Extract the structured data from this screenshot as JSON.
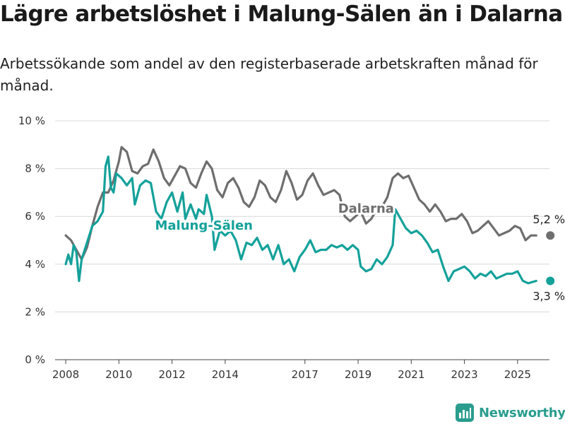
{
  "header": {
    "title": "Lägre arbetslöshet i Malung-Sälen än i Dalarna",
    "subtitle": "Arbetssökande som andel av den registerbaserade arbetskraften månad för månad."
  },
  "brand": {
    "name": "Newsworthy",
    "icon": "newsworthy-logo-icon"
  },
  "chart_data": {
    "type": "line",
    "title": "Lägre arbetslöshet i Malung-Sälen än i Dalarna",
    "subtitle": "Arbetssökande som andel av den registerbaserade arbetskraften månad för månad.",
    "xlabel": "",
    "ylabel": "",
    "x_range": [
      2007.6,
      2026.2
    ],
    "ylim": [
      0,
      10
    ],
    "y_ticks": [
      0,
      2,
      4,
      6,
      8,
      10
    ],
    "y_tick_labels": [
      "0 %",
      "2 %",
      "4 %",
      "6 %",
      "8 %",
      "10 %"
    ],
    "x_ticks": [
      2008,
      2010,
      2012,
      2014,
      2017,
      2019,
      2021,
      2023,
      2025
    ],
    "x_tick_labels": [
      "2008",
      "2010",
      "2012",
      "2014",
      "2017",
      "2019",
      "2021",
      "2023",
      "2025"
    ],
    "grid": "horizontal",
    "legend": "inline labels",
    "series": [
      {
        "name": "Dalarna",
        "color": "#6e6e6e",
        "end_label": "5,2 %",
        "points": [
          [
            2008.0,
            5.2
          ],
          [
            2008.2,
            5.0
          ],
          [
            2008.4,
            4.6
          ],
          [
            2008.6,
            4.2
          ],
          [
            2008.8,
            4.7
          ],
          [
            2009.0,
            5.6
          ],
          [
            2009.2,
            6.4
          ],
          [
            2009.4,
            7.0
          ],
          [
            2009.6,
            7.0
          ],
          [
            2009.8,
            7.5
          ],
          [
            2010.0,
            8.3
          ],
          [
            2010.1,
            8.9
          ],
          [
            2010.3,
            8.7
          ],
          [
            2010.5,
            7.9
          ],
          [
            2010.7,
            7.8
          ],
          [
            2010.9,
            8.1
          ],
          [
            2011.1,
            8.2
          ],
          [
            2011.3,
            8.8
          ],
          [
            2011.5,
            8.3
          ],
          [
            2011.7,
            7.6
          ],
          [
            2011.9,
            7.3
          ],
          [
            2012.1,
            7.7
          ],
          [
            2012.3,
            8.1
          ],
          [
            2012.5,
            8.0
          ],
          [
            2012.7,
            7.4
          ],
          [
            2012.9,
            7.2
          ],
          [
            2013.1,
            7.8
          ],
          [
            2013.3,
            8.3
          ],
          [
            2013.5,
            8.0
          ],
          [
            2013.7,
            7.1
          ],
          [
            2013.9,
            6.8
          ],
          [
            2014.1,
            7.4
          ],
          [
            2014.3,
            7.6
          ],
          [
            2014.5,
            7.2
          ],
          [
            2014.7,
            6.6
          ],
          [
            2014.9,
            6.4
          ],
          [
            2015.1,
            6.8
          ],
          [
            2015.3,
            7.5
          ],
          [
            2015.5,
            7.3
          ],
          [
            2015.7,
            6.8
          ],
          [
            2015.9,
            6.6
          ],
          [
            2016.1,
            7.1
          ],
          [
            2016.3,
            7.9
          ],
          [
            2016.5,
            7.4
          ],
          [
            2016.7,
            6.7
          ],
          [
            2016.9,
            6.9
          ],
          [
            2017.1,
            7.5
          ],
          [
            2017.3,
            7.8
          ],
          [
            2017.5,
            7.3
          ],
          [
            2017.7,
            6.9
          ],
          [
            2017.9,
            7.0
          ],
          [
            2018.1,
            7.1
          ],
          [
            2018.3,
            6.9
          ],
          [
            2018.5,
            6.0
          ],
          [
            2018.7,
            5.8
          ],
          [
            2018.9,
            6.0
          ],
          [
            2019.1,
            6.2
          ],
          [
            2019.3,
            5.7
          ],
          [
            2019.5,
            5.9
          ],
          [
            2019.7,
            6.3
          ],
          [
            2019.9,
            6.4
          ],
          [
            2020.1,
            6.8
          ],
          [
            2020.3,
            7.6
          ],
          [
            2020.5,
            7.8
          ],
          [
            2020.7,
            7.6
          ],
          [
            2020.9,
            7.7
          ],
          [
            2021.1,
            7.2
          ],
          [
            2021.3,
            6.7
          ],
          [
            2021.5,
            6.5
          ],
          [
            2021.7,
            6.2
          ],
          [
            2021.9,
            6.5
          ],
          [
            2022.1,
            6.2
          ],
          [
            2022.3,
            5.8
          ],
          [
            2022.5,
            5.9
          ],
          [
            2022.7,
            5.9
          ],
          [
            2022.9,
            6.1
          ],
          [
            2023.1,
            5.8
          ],
          [
            2023.3,
            5.3
          ],
          [
            2023.5,
            5.4
          ],
          [
            2023.7,
            5.6
          ],
          [
            2023.9,
            5.8
          ],
          [
            2024.1,
            5.5
          ],
          [
            2024.3,
            5.2
          ],
          [
            2024.5,
            5.3
          ],
          [
            2024.7,
            5.4
          ],
          [
            2024.9,
            5.6
          ],
          [
            2025.1,
            5.5
          ],
          [
            2025.3,
            5.0
          ],
          [
            2025.5,
            5.2
          ],
          [
            2025.7,
            5.2
          ]
        ]
      },
      {
        "name": "Malung-Sälen",
        "color": "#14a19a",
        "end_label": "3,3 %",
        "points": [
          [
            2008.0,
            4.0
          ],
          [
            2008.1,
            4.4
          ],
          [
            2008.2,
            4.0
          ],
          [
            2008.3,
            4.8
          ],
          [
            2008.4,
            4.5
          ],
          [
            2008.5,
            3.3
          ],
          [
            2008.6,
            4.2
          ],
          [
            2008.8,
            4.9
          ],
          [
            2009.0,
            5.6
          ],
          [
            2009.2,
            5.8
          ],
          [
            2009.4,
            6.2
          ],
          [
            2009.5,
            8.1
          ],
          [
            2009.6,
            8.5
          ],
          [
            2009.7,
            7.2
          ],
          [
            2009.8,
            7.0
          ],
          [
            2009.9,
            7.8
          ],
          [
            2010.1,
            7.6
          ],
          [
            2010.3,
            7.3
          ],
          [
            2010.5,
            7.6
          ],
          [
            2010.6,
            6.5
          ],
          [
            2010.8,
            7.3
          ],
          [
            2011.0,
            7.5
          ],
          [
            2011.2,
            7.4
          ],
          [
            2011.4,
            6.2
          ],
          [
            2011.6,
            5.9
          ],
          [
            2011.8,
            6.6
          ],
          [
            2012.0,
            7.0
          ],
          [
            2012.2,
            6.2
          ],
          [
            2012.4,
            7.0
          ],
          [
            2012.5,
            5.9
          ],
          [
            2012.7,
            6.5
          ],
          [
            2012.9,
            5.9
          ],
          [
            2013.0,
            6.3
          ],
          [
            2013.2,
            6.1
          ],
          [
            2013.3,
            6.9
          ],
          [
            2013.5,
            6.0
          ],
          [
            2013.6,
            4.6
          ],
          [
            2013.8,
            5.4
          ],
          [
            2014.0,
            5.2
          ],
          [
            2014.2,
            5.4
          ],
          [
            2014.4,
            5.0
          ],
          [
            2014.6,
            4.2
          ],
          [
            2014.8,
            4.9
          ],
          [
            2015.0,
            4.8
          ],
          [
            2015.2,
            5.1
          ],
          [
            2015.4,
            4.6
          ],
          [
            2015.6,
            4.8
          ],
          [
            2015.8,
            4.2
          ],
          [
            2016.0,
            4.8
          ],
          [
            2016.2,
            4.0
          ],
          [
            2016.4,
            4.2
          ],
          [
            2016.6,
            3.7
          ],
          [
            2016.8,
            4.3
          ],
          [
            2017.0,
            4.6
          ],
          [
            2017.2,
            5.0
          ],
          [
            2017.4,
            4.5
          ],
          [
            2017.6,
            4.6
          ],
          [
            2017.8,
            4.6
          ],
          [
            2018.0,
            4.8
          ],
          [
            2018.2,
            4.7
          ],
          [
            2018.4,
            4.8
          ],
          [
            2018.6,
            4.6
          ],
          [
            2018.8,
            4.8
          ],
          [
            2019.0,
            4.6
          ],
          [
            2019.1,
            3.9
          ],
          [
            2019.3,
            3.7
          ],
          [
            2019.5,
            3.8
          ],
          [
            2019.7,
            4.2
          ],
          [
            2019.9,
            4.0
          ],
          [
            2020.1,
            4.3
          ],
          [
            2020.3,
            4.8
          ],
          [
            2020.4,
            6.3
          ],
          [
            2020.6,
            5.9
          ],
          [
            2020.8,
            5.5
          ],
          [
            2021.0,
            5.3
          ],
          [
            2021.2,
            5.4
          ],
          [
            2021.4,
            5.2
          ],
          [
            2021.6,
            4.9
          ],
          [
            2021.8,
            4.5
          ],
          [
            2022.0,
            4.6
          ],
          [
            2022.2,
            3.9
          ],
          [
            2022.4,
            3.3
          ],
          [
            2022.6,
            3.7
          ],
          [
            2022.8,
            3.8
          ],
          [
            2023.0,
            3.9
          ],
          [
            2023.2,
            3.7
          ],
          [
            2023.4,
            3.4
          ],
          [
            2023.6,
            3.6
          ],
          [
            2023.8,
            3.5
          ],
          [
            2024.0,
            3.7
          ],
          [
            2024.2,
            3.4
          ],
          [
            2024.4,
            3.5
          ],
          [
            2024.6,
            3.6
          ],
          [
            2024.8,
            3.6
          ],
          [
            2025.0,
            3.7
          ],
          [
            2025.2,
            3.3
          ],
          [
            2025.4,
            3.2
          ],
          [
            2025.7,
            3.3
          ]
        ]
      }
    ]
  }
}
